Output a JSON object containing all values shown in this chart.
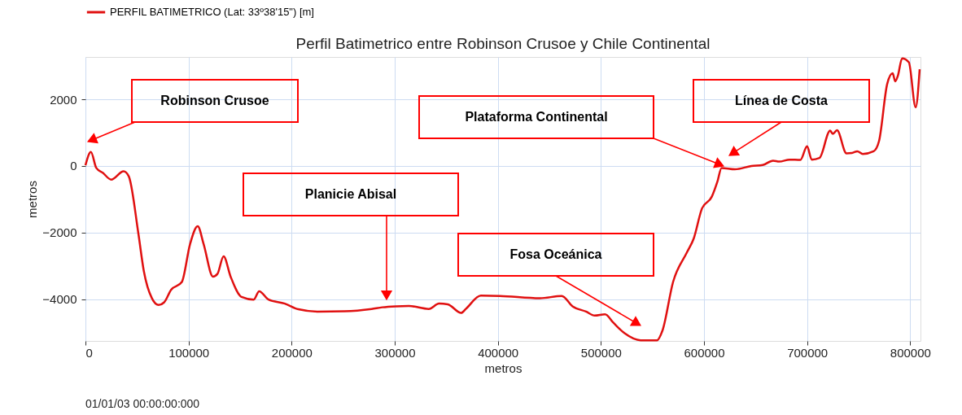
{
  "chart_data": {
    "type": "line",
    "title": "Perfil Batimetrico entre Robinson Crusoe y Chile Continental",
    "xlabel": "metros",
    "ylabel": "metros",
    "xlim": [
      0,
      810000
    ],
    "xticks": [
      0,
      100000,
      200000,
      300000,
      400000,
      500000,
      600000,
      700000,
      800000
    ],
    "ylim": [
      -5250,
      3270
    ],
    "yticks": [
      -4000,
      -2000,
      0,
      2000
    ],
    "grid": true,
    "legend": "top left",
    "marker": "none",
    "line_style": "solid",
    "series": [
      {
        "name": "PERFIL BATIMETRICO (Lat: 33º38'15\") [m]",
        "color": "#e01010",
        "x": [
          0,
          5300,
          10500,
          17000,
          25000,
          37000,
          42000,
          51300,
          56600,
          64500,
          71000,
          76400,
          83000,
          93500,
          101500,
          108900,
          114600,
          123700,
          128000,
          134000,
          140800,
          151400,
          163200,
          168500,
          177600,
          193400,
          206500,
          224900,
          251300,
          277600,
          288000,
          301300,
          313700,
          333000,
          343000,
          351400,
          364500,
          369000,
          383500,
          402000,
          440800,
          462000,
          472500,
          485600,
          494000,
          504000,
          512000,
          523000,
          538500,
          554500,
          559700,
          570000,
          583500,
          590000,
          598000,
          607600,
          613000,
          617000,
          630000,
          646000,
          657000,
          667000,
          673000,
          683000,
          693500,
          700000,
          704500,
          712000,
          722400,
          725000,
          729000,
          738200,
          743500,
          748700,
          754000,
          764500,
          769800,
          777700,
          783000,
          785500,
          788000,
          792200,
          798700,
          805300,
          809200
        ],
        "values": [
          20,
          420,
          -60,
          -210,
          -410,
          -160,
          -310,
          -2020,
          -3150,
          -3970,
          -4170,
          -4090,
          -3720,
          -3480,
          -2340,
          -1810,
          -2340,
          -3320,
          -3240,
          -2710,
          -3320,
          -3930,
          -4010,
          -3760,
          -4010,
          -4130,
          -4300,
          -4370,
          -4360,
          -4290,
          -4240,
          -4210,
          -4200,
          -4290,
          -4130,
          -4150,
          -4410,
          -4290,
          -3890,
          -3900,
          -3970,
          -3900,
          -4210,
          -4370,
          -4490,
          -4450,
          -4700,
          -5020,
          -5230,
          -5230,
          -4940,
          -3480,
          -2590,
          -2180,
          -1280,
          -920,
          -470,
          -60,
          -100,
          0,
          30,
          160,
          130,
          190,
          180,
          590,
          190,
          240,
          1060,
          960,
          1070,
          380,
          390,
          440,
          360,
          440,
          750,
          2460,
          2780,
          2540,
          2700,
          3230,
          3110,
          1760,
          2900
        ]
      }
    ],
    "annotations": [
      "Robinson Crusoe",
      "Planicie Abisal",
      "Fosa Oceánica",
      "Plataforma Continental",
      "Línea de Costa",
      "01/01/03 00:00:00:000"
    ]
  }
}
